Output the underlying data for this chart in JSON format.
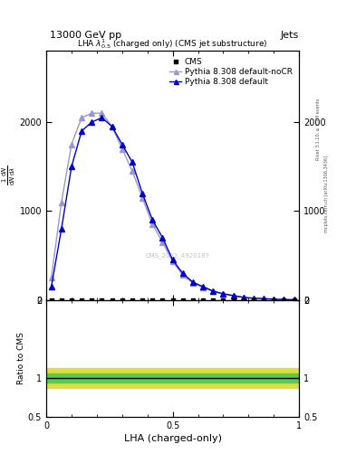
{
  "title_top": "13000 GeV pp",
  "title_right": "Jets",
  "plot_title": "LHA $\\lambda^{1}_{0.5}$ (charged only) (CMS jet substructure)",
  "xlabel": "LHA (charged-only)",
  "ylabel": "$\\frac{1}{\\mathrm{d}N}\\frac{\\mathrm{d}N}{\\mathrm{d}\\lambda}$",
  "watermark": "CMS_2021_4920187",
  "rivet_label": "Rivet 3.1.10, ≥ 2.7M events",
  "arxiv_label": "mcplots.cern.ch [arXiv:1306.3436]",
  "cms_label": "CMS",
  "pythia_default_label": "Pythia 8.308 default",
  "pythia_nocr_label": "Pythia 8.308 default-noCR",
  "pythia_default_x": [
    0.02,
    0.06,
    0.1,
    0.14,
    0.18,
    0.22,
    0.26,
    0.3,
    0.34,
    0.38,
    0.42,
    0.46,
    0.5,
    0.54,
    0.58,
    0.62,
    0.66,
    0.7,
    0.74,
    0.78,
    0.82,
    0.86,
    0.9,
    0.94,
    0.98
  ],
  "pythia_default_y": [
    150,
    800,
    1500,
    1900,
    2000,
    2050,
    1950,
    1750,
    1550,
    1200,
    900,
    700,
    450,
    300,
    200,
    150,
    100,
    70,
    50,
    30,
    20,
    15,
    10,
    5,
    3
  ],
  "pythia_nocr_x": [
    0.02,
    0.06,
    0.1,
    0.14,
    0.18,
    0.22,
    0.26,
    0.3,
    0.34,
    0.38,
    0.42,
    0.46,
    0.5,
    0.54,
    0.58,
    0.62,
    0.66,
    0.7,
    0.74,
    0.78,
    0.82,
    0.86,
    0.9,
    0.94,
    0.98
  ],
  "pythia_nocr_y": [
    250,
    1100,
    1750,
    2050,
    2100,
    2100,
    1950,
    1700,
    1450,
    1150,
    850,
    650,
    430,
    280,
    190,
    140,
    95,
    65,
    45,
    28,
    18,
    12,
    8,
    4,
    2
  ],
  "ylim_main": [
    0,
    2800
  ],
  "ytick_labels_main": [
    "0",
    "1000",
    "2000"
  ],
  "yticks_main": [
    0,
    1000,
    2000
  ],
  "xlim": [
    0,
    1
  ],
  "xticks": [
    0.0,
    0.5,
    1.0
  ],
  "ratio_ylim": [
    0.5,
    2.0
  ],
  "ratio_yticks": [
    0.5,
    1.0,
    2.0
  ],
  "color_default": "#0000cc",
  "color_nocr": "#9999cc",
  "color_cms": "black",
  "color_green_band": "#55cc55",
  "color_yellow_band": "#dddd44",
  "green_band_half": 0.06,
  "yellow_band_half": 0.13
}
